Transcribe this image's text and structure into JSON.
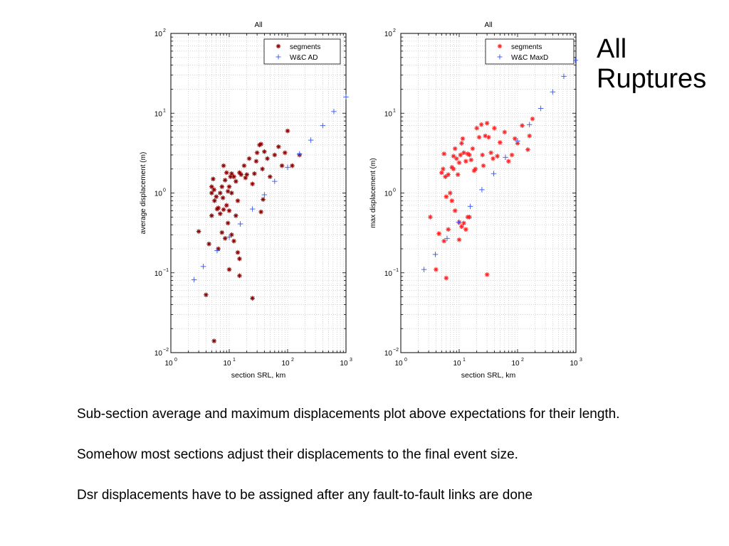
{
  "slide": {
    "title_lines": [
      "All",
      "Ruptures"
    ],
    "paragraphs": [
      "Sub-section average and maximum displacements plot above expectations for their length.",
      "Somehow most sections adjust their displacements to the final event size.",
      "Dsr displacements have to be assigned after any fault-to-fault links are done"
    ]
  },
  "chart_data": [
    {
      "type": "scatter",
      "title": "All",
      "xlabel": "section SRL, km",
      "ylabel": "average displacement (m)",
      "xscale": "log",
      "yscale": "log",
      "xlim": [
        1,
        1000
      ],
      "ylim": [
        0.01,
        100
      ],
      "grid": true,
      "legend_position": "top-right",
      "series": [
        {
          "name": "segments",
          "marker": "*",
          "color": "#8b0000",
          "points": [
            [
              5,
              1.0
            ],
            [
              5,
              1.2
            ],
            [
              5.3,
              1.5
            ],
            [
              5.5,
              1.1
            ],
            [
              5.6,
              0.8
            ],
            [
              6,
              0.9
            ],
            [
              6.2,
              0.63
            ],
            [
              6.5,
              0.65
            ],
            [
              7,
              1.0
            ],
            [
              7.5,
              1.2
            ],
            [
              7.8,
              0.87
            ],
            [
              8,
              2.2
            ],
            [
              8.5,
              1.45
            ],
            [
              9,
              1.8
            ],
            [
              9.5,
              1.05
            ],
            [
              10,
              1.2
            ],
            [
              10.5,
              1.6
            ],
            [
              11,
              1.75
            ],
            [
              11,
              1.0
            ],
            [
              12,
              1.6
            ],
            [
              13,
              1.4
            ],
            [
              14,
              0.8
            ],
            [
              15,
              1.8
            ],
            [
              16,
              1.7
            ],
            [
              18,
              2.2
            ],
            [
              19,
              1.55
            ],
            [
              20,
              1.7
            ],
            [
              22,
              2.7
            ],
            [
              25,
              1.3
            ],
            [
              27,
              1.75
            ],
            [
              29,
              2.5
            ],
            [
              30,
              3.2
            ],
            [
              33,
              4.0
            ],
            [
              35,
              4.1
            ],
            [
              37,
              2.0
            ],
            [
              40,
              3.3
            ],
            [
              45,
              2.7
            ],
            [
              50,
              1.6
            ],
            [
              60,
              3.0
            ],
            [
              70,
              3.8
            ],
            [
              80,
              2.2
            ],
            [
              90,
              3.2
            ],
            [
              100,
              6.0
            ],
            [
              120,
              2.2
            ],
            [
              160,
              3.0
            ],
            [
              3,
              0.33
            ],
            [
              4.5,
              0.23
            ],
            [
              5,
              0.52
            ],
            [
              6.5,
              0.2
            ],
            [
              7,
              0.55
            ],
            [
              7.5,
              0.32
            ],
            [
              8,
              0.62
            ],
            [
              8.5,
              0.27
            ],
            [
              9,
              0.7
            ],
            [
              9.5,
              0.42
            ],
            [
              10,
              0.6
            ],
            [
              11,
              0.3
            ],
            [
              12,
              0.25
            ],
            [
              13,
              0.52
            ],
            [
              14,
              0.18
            ],
            [
              15,
              0.15
            ],
            [
              10,
              0.11
            ],
            [
              15,
              0.092
            ],
            [
              25,
              0.048
            ],
            [
              4,
              0.053
            ],
            [
              5.5,
              0.014
            ],
            [
              35,
              0.58
            ],
            [
              38,
              0.83
            ]
          ]
        },
        {
          "name": "W&C AD",
          "marker": "+",
          "color": "#3355ee",
          "points": [
            [
              2.5,
              0.082
            ],
            [
              3.6,
              0.12
            ],
            [
              6.2,
              0.19
            ],
            [
              10,
              0.28
            ],
            [
              15.5,
              0.41
            ],
            [
              25,
              0.63
            ],
            [
              40,
              0.95
            ],
            [
              60,
              1.4
            ],
            [
              100,
              2.1
            ],
            [
              160,
              3.1
            ],
            [
              250,
              4.6
            ],
            [
              400,
              7.0
            ],
            [
              620,
              10.5
            ],
            [
              1000,
              16
            ]
          ]
        }
      ]
    },
    {
      "type": "scatter",
      "title": "All",
      "xlabel": "section SRL, km",
      "ylabel": "max displacement (m)",
      "xscale": "log",
      "yscale": "log",
      "xlim": [
        1,
        1000
      ],
      "ylim": [
        0.01,
        100
      ],
      "grid": true,
      "legend_position": "top-right",
      "series": [
        {
          "name": "segments",
          "marker": "*",
          "color": "#ff2222",
          "points": [
            [
              5,
              1.8
            ],
            [
              5.3,
              2.0
            ],
            [
              5.5,
              3.1
            ],
            [
              5.8,
              1.6
            ],
            [
              6,
              0.9
            ],
            [
              6.5,
              1.7
            ],
            [
              7,
              1.0
            ],
            [
              7.5,
              2.1
            ],
            [
              8,
              2.0
            ],
            [
              8,
              2.9
            ],
            [
              8.5,
              3.6
            ],
            [
              9,
              2.7
            ],
            [
              9.5,
              1.7
            ],
            [
              10,
              2.4
            ],
            [
              10.5,
              3.0
            ],
            [
              11,
              4.2
            ],
            [
              11.5,
              4.8
            ],
            [
              12,
              3.2
            ],
            [
              13,
              2.5
            ],
            [
              14,
              3.1
            ],
            [
              15,
              3.0
            ],
            [
              16,
              2.6
            ],
            [
              17,
              3.6
            ],
            [
              18,
              1.9
            ],
            [
              19,
              2.0
            ],
            [
              20,
              6.5
            ],
            [
              22,
              5.0
            ],
            [
              24,
              7.2
            ],
            [
              25,
              3.0
            ],
            [
              26,
              2.2
            ],
            [
              28,
              5.2
            ],
            [
              30,
              7.5
            ],
            [
              32,
              5.0
            ],
            [
              35,
              3.2
            ],
            [
              38,
              2.7
            ],
            [
              40,
              6.5
            ],
            [
              45,
              2.9
            ],
            [
              50,
              4.3
            ],
            [
              60,
              5.8
            ],
            [
              70,
              2.5
            ],
            [
              80,
              3.0
            ],
            [
              90,
              4.8
            ],
            [
              100,
              4.2
            ],
            [
              120,
              7.0
            ],
            [
              150,
              3.5
            ],
            [
              160,
              5.2
            ],
            [
              180,
              8.5
            ],
            [
              3.2,
              0.5
            ],
            [
              4.5,
              0.31
            ],
            [
              5.5,
              0.25
            ],
            [
              6.5,
              0.35
            ],
            [
              7.5,
              0.8
            ],
            [
              8.5,
              0.6
            ],
            [
              10,
              0.43
            ],
            [
              10,
              0.26
            ],
            [
              11,
              0.38
            ],
            [
              12,
              0.42
            ],
            [
              13,
              0.35
            ],
            [
              14,
              0.5
            ],
            [
              15,
              0.5
            ],
            [
              4,
              0.11
            ],
            [
              6,
              0.086
            ],
            [
              30,
              0.095
            ]
          ]
        },
        {
          "name": "W&C MaxD",
          "marker": "+",
          "color": "#3355ee",
          "points": [
            [
              2.5,
              0.11
            ],
            [
              3.9,
              0.17
            ],
            [
              6.2,
              0.27
            ],
            [
              9.8,
              0.43
            ],
            [
              15.5,
              0.68
            ],
            [
              24.5,
              1.1
            ],
            [
              39,
              1.75
            ],
            [
              62,
              2.8
            ],
            [
              100,
              4.5
            ],
            [
              160,
              7.2
            ],
            [
              250,
              11.5
            ],
            [
              400,
              18.5
            ],
            [
              620,
              29
            ],
            [
              980,
              46
            ]
          ]
        }
      ]
    }
  ]
}
